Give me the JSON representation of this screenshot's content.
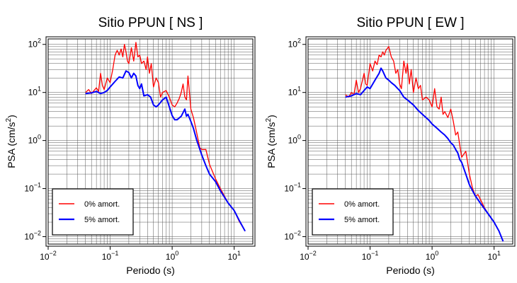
{
  "chart_data": [
    {
      "type": "line",
      "title": "Sitio PPUN [ NS ]",
      "xlabel": "Periodo (s)",
      "ylabel_main": "PSA (cm/s",
      "ylabel_sup": "2",
      "ylabel_end": ")",
      "xscale": "log",
      "yscale": "log",
      "xlim": [
        0.01,
        20
      ],
      "ylim": [
        0.007,
        130
      ],
      "x_ticks": [
        {
          "base": "10",
          "exp": "−2",
          "value": 0.01
        },
        {
          "base": "10",
          "exp": "−1",
          "value": 0.1
        },
        {
          "base": "10",
          "exp": "0",
          "value": 1
        },
        {
          "base": "10",
          "exp": "1",
          "value": 10
        }
      ],
      "y_ticks": [
        {
          "base": "10",
          "exp": "−2",
          "value": 0.01
        },
        {
          "base": "10",
          "exp": "−1",
          "value": 0.1
        },
        {
          "base": "10",
          "exp": "0",
          "value": 1
        },
        {
          "base": "10",
          "exp": "1",
          "value": 10
        },
        {
          "base": "10",
          "exp": "2",
          "value": 100
        }
      ],
      "grid": true,
      "legend_position": "bottom-left",
      "series": [
        {
          "name": "0% amort.",
          "color": "#ff0000",
          "points": [
            [
              0.04,
              10
            ],
            [
              0.045,
              11.5
            ],
            [
              0.05,
              9.5
            ],
            [
              0.055,
              11
            ],
            [
              0.06,
              12.5
            ],
            [
              0.065,
              10.5
            ],
            [
              0.07,
              25
            ],
            [
              0.075,
              14
            ],
            [
              0.08,
              11.5
            ],
            [
              0.09,
              20
            ],
            [
              0.1,
              16
            ],
            [
              0.11,
              30
            ],
            [
              0.12,
              60
            ],
            [
              0.13,
              75
            ],
            [
              0.14,
              60
            ],
            [
              0.15,
              80
            ],
            [
              0.16,
              55
            ],
            [
              0.17,
              100
            ],
            [
              0.18,
              70
            ],
            [
              0.19,
              45
            ],
            [
              0.2,
              40
            ],
            [
              0.22,
              85
            ],
            [
              0.24,
              45
            ],
            [
              0.26,
              110
            ],
            [
              0.28,
              55
            ],
            [
              0.3,
              60
            ],
            [
              0.32,
              40
            ],
            [
              0.35,
              45
            ],
            [
              0.38,
              30
            ],
            [
              0.4,
              55
            ],
            [
              0.43,
              25
            ],
            [
              0.46,
              40
            ],
            [
              0.5,
              13
            ],
            [
              0.55,
              20
            ],
            [
              0.6,
              16
            ],
            [
              0.65,
              8
            ],
            [
              0.7,
              10
            ],
            [
              0.8,
              11
            ],
            [
              0.9,
              8
            ],
            [
              1.0,
              5.5
            ],
            [
              1.1,
              5
            ],
            [
              1.2,
              6
            ],
            [
              1.3,
              7.5
            ],
            [
              1.4,
              10
            ],
            [
              1.5,
              15
            ],
            [
              1.6,
              8
            ],
            [
              1.7,
              7
            ],
            [
              1.8,
              22
            ],
            [
              1.9,
              10
            ],
            [
              2.0,
              4.5
            ],
            [
              2.2,
              3
            ],
            [
              2.4,
              1.8
            ],
            [
              2.6,
              1.1
            ],
            [
              2.8,
              0.7
            ],
            [
              3.0,
              0.65
            ],
            [
              3.5,
              0.65
            ],
            [
              4.0,
              0.32
            ],
            [
              5.0,
              0.16
            ],
            [
              6.0,
              0.1
            ],
            [
              8.0,
              0.05
            ],
            [
              10.0,
              0.035
            ],
            [
              12.0,
              0.021
            ],
            [
              15.0,
              0.013
            ]
          ]
        },
        {
          "name": "5% amort.",
          "color": "#0000ff",
          "points": [
            [
              0.04,
              9.5
            ],
            [
              0.05,
              9.8
            ],
            [
              0.06,
              10.5
            ],
            [
              0.07,
              9.5
            ],
            [
              0.08,
              10
            ],
            [
              0.09,
              11
            ],
            [
              0.1,
              13
            ],
            [
              0.12,
              17
            ],
            [
              0.14,
              21
            ],
            [
              0.16,
              20
            ],
            [
              0.18,
              28
            ],
            [
              0.2,
              26
            ],
            [
              0.22,
              20
            ],
            [
              0.24,
              25
            ],
            [
              0.26,
              22
            ],
            [
              0.28,
              14
            ],
            [
              0.3,
              12
            ],
            [
              0.32,
              15
            ],
            [
              0.35,
              8.5
            ],
            [
              0.4,
              9
            ],
            [
              0.45,
              8
            ],
            [
              0.5,
              5.5
            ],
            [
              0.55,
              5
            ],
            [
              0.6,
              5.5
            ],
            [
              0.7,
              7
            ],
            [
              0.8,
              8
            ],
            [
              0.9,
              5
            ],
            [
              1.0,
              3.3
            ],
            [
              1.1,
              2.7
            ],
            [
              1.2,
              2.7
            ],
            [
              1.4,
              3.2
            ],
            [
              1.6,
              4.5
            ],
            [
              1.7,
              3.2
            ],
            [
              1.8,
              3.5
            ],
            [
              2.0,
              2.5
            ],
            [
              2.2,
              1.8
            ],
            [
              2.5,
              1.0
            ],
            [
              3.0,
              0.5
            ],
            [
              3.5,
              0.3
            ],
            [
              4.0,
              0.2
            ],
            [
              5.0,
              0.14
            ],
            [
              6.0,
              0.09
            ],
            [
              8.0,
              0.05
            ],
            [
              10.0,
              0.035
            ],
            [
              12.0,
              0.022
            ],
            [
              15.0,
              0.013
            ]
          ]
        }
      ]
    },
    {
      "type": "line",
      "title": "Sitio PPUN [ EW ]",
      "xlabel": "Periodo (s)",
      "ylabel_main": "PSA (cm/s",
      "ylabel_sup": "2",
      "ylabel_end": ")",
      "xscale": "log",
      "yscale": "log",
      "xlim": [
        0.01,
        20
      ],
      "ylim": [
        0.007,
        130
      ],
      "x_ticks": [
        {
          "base": "10",
          "exp": "−2",
          "value": 0.01
        },
        {
          "base": "10",
          "exp": "−1",
          "value": 0.1
        },
        {
          "base": "10",
          "exp": "0",
          "value": 1
        },
        {
          "base": "10",
          "exp": "1",
          "value": 10
        }
      ],
      "y_ticks": [
        {
          "base": "10",
          "exp": "−2",
          "value": 0.01
        },
        {
          "base": "10",
          "exp": "−1",
          "value": 0.1
        },
        {
          "base": "10",
          "exp": "0",
          "value": 1
        },
        {
          "base": "10",
          "exp": "1",
          "value": 10
        },
        {
          "base": "10",
          "exp": "2",
          "value": 100
        }
      ],
      "grid": true,
      "legend_position": "bottom-left",
      "series": [
        {
          "name": "0% amort.",
          "color": "#ff0000",
          "points": [
            [
              0.04,
              9
            ],
            [
              0.045,
              8
            ],
            [
              0.05,
              10
            ],
            [
              0.055,
              9
            ],
            [
              0.06,
              18
            ],
            [
              0.065,
              10
            ],
            [
              0.07,
              12
            ],
            [
              0.08,
              25
            ],
            [
              0.085,
              15
            ],
            [
              0.09,
              14
            ],
            [
              0.1,
              40
            ],
            [
              0.11,
              28
            ],
            [
              0.12,
              45
            ],
            [
              0.13,
              38
            ],
            [
              0.14,
              60
            ],
            [
              0.15,
              55
            ],
            [
              0.16,
              70
            ],
            [
              0.17,
              60
            ],
            [
              0.18,
              75
            ],
            [
              0.2,
              90
            ],
            [
              0.22,
              55
            ],
            [
              0.24,
              45
            ],
            [
              0.26,
              25
            ],
            [
              0.28,
              30
            ],
            [
              0.3,
              15
            ],
            [
              0.32,
              12
            ],
            [
              0.35,
              45
            ],
            [
              0.38,
              25
            ],
            [
              0.4,
              40
            ],
            [
              0.43,
              15
            ],
            [
              0.46,
              30
            ],
            [
              0.5,
              10
            ],
            [
              0.55,
              20
            ],
            [
              0.6,
              12
            ],
            [
              0.65,
              14
            ],
            [
              0.7,
              7
            ],
            [
              0.8,
              8
            ],
            [
              0.9,
              7
            ],
            [
              1.0,
              5
            ],
            [
              1.1,
              12
            ],
            [
              1.2,
              5
            ],
            [
              1.3,
              4.5
            ],
            [
              1.4,
              8
            ],
            [
              1.5,
              3.5
            ],
            [
              1.6,
              4
            ],
            [
              1.8,
              3
            ],
            [
              2.0,
              4.5
            ],
            [
              2.2,
              2.5
            ],
            [
              2.4,
              1.3
            ],
            [
              2.6,
              1.5
            ],
            [
              2.8,
              0.8
            ],
            [
              3.0,
              0.45
            ],
            [
              3.5,
              0.6
            ],
            [
              4.0,
              0.2
            ],
            [
              4.5,
              0.1
            ],
            [
              5.0,
              0.07
            ],
            [
              5.5,
              0.075
            ],
            [
              6.0,
              0.06
            ],
            [
              7.0,
              0.04
            ],
            [
              8.0,
              0.03
            ],
            [
              10.0,
              0.02
            ],
            [
              12.0,
              0.013
            ],
            [
              14.0,
              0.008
            ]
          ]
        },
        {
          "name": "5% amort.",
          "color": "#0000ff",
          "points": [
            [
              0.04,
              8
            ],
            [
              0.05,
              8.5
            ],
            [
              0.06,
              9.5
            ],
            [
              0.07,
              9
            ],
            [
              0.08,
              11
            ],
            [
              0.09,
              13
            ],
            [
              0.1,
              12
            ],
            [
              0.12,
              18
            ],
            [
              0.14,
              25
            ],
            [
              0.15,
              32
            ],
            [
              0.16,
              28
            ],
            [
              0.18,
              20
            ],
            [
              0.2,
              18
            ],
            [
              0.22,
              16
            ],
            [
              0.25,
              14
            ],
            [
              0.28,
              12
            ],
            [
              0.3,
              11
            ],
            [
              0.35,
              8
            ],
            [
              0.4,
              7
            ],
            [
              0.5,
              5.5
            ],
            [
              0.6,
              4.2
            ],
            [
              0.7,
              3.5
            ],
            [
              0.8,
              3
            ],
            [
              0.9,
              2.6
            ],
            [
              1.0,
              2.2
            ],
            [
              1.2,
              1.8
            ],
            [
              1.4,
              1.5
            ],
            [
              1.6,
              1.3
            ],
            [
              1.8,
              1.1
            ],
            [
              2.0,
              0.9
            ],
            [
              2.2,
              0.8
            ],
            [
              2.4,
              0.65
            ],
            [
              2.6,
              0.55
            ],
            [
              2.8,
              0.4
            ],
            [
              3.0,
              0.35
            ],
            [
              3.5,
              0.2
            ],
            [
              4.0,
              0.12
            ],
            [
              5.0,
              0.07
            ],
            [
              6.0,
              0.05
            ],
            [
              8.0,
              0.03
            ],
            [
              10.0,
              0.02
            ],
            [
              12.0,
              0.013
            ],
            [
              14.0,
              0.008
            ]
          ]
        }
      ]
    }
  ]
}
